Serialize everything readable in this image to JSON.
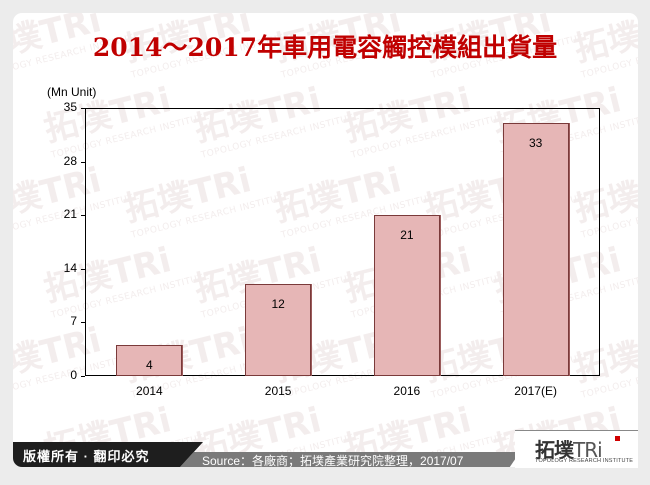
{
  "title": "2014～2017年車用電容觸控模組出貨量",
  "unit_label": "(Mn Unit)",
  "chart_data": {
    "type": "bar",
    "title": "2014～2017年車用電容觸控模組出貨量",
    "xlabel": "",
    "ylabel": "(Mn Unit)",
    "categories": [
      "2014",
      "2015",
      "2016",
      "2017(E)"
    ],
    "values": [
      4,
      12,
      21,
      33
    ],
    "data_labels": [
      "4",
      "12",
      "21",
      "33"
    ],
    "ylim": [
      0,
      35
    ],
    "yticks": [
      "0",
      "7",
      "14",
      "21",
      "28",
      "35"
    ],
    "grid": false,
    "legend": null,
    "bar_color": "#e6b6b6",
    "bar_border_color": "#7a3a3a"
  },
  "footer": {
    "copyright": "版權所有 · 翻印必究",
    "source": "Source：各廠商；拓墣產業研究院整理，2017/07",
    "logo_text": "拓墣",
    "logo_tri": "TRi",
    "logo_subtitle": "TOPOLOGY RESEARCH INSTITUTE"
  },
  "watermark": {
    "text": "拓墣TRi",
    "subtext": "TOPOLOGY RESEARCH INSTITUTE"
  },
  "colors": {
    "title": "#c00000",
    "background": "#ececec",
    "card": "#ffffff",
    "footer_dark": "#1e1e1e",
    "footer_gray": "#7a7a7a",
    "logo_accent": "#d00000"
  }
}
